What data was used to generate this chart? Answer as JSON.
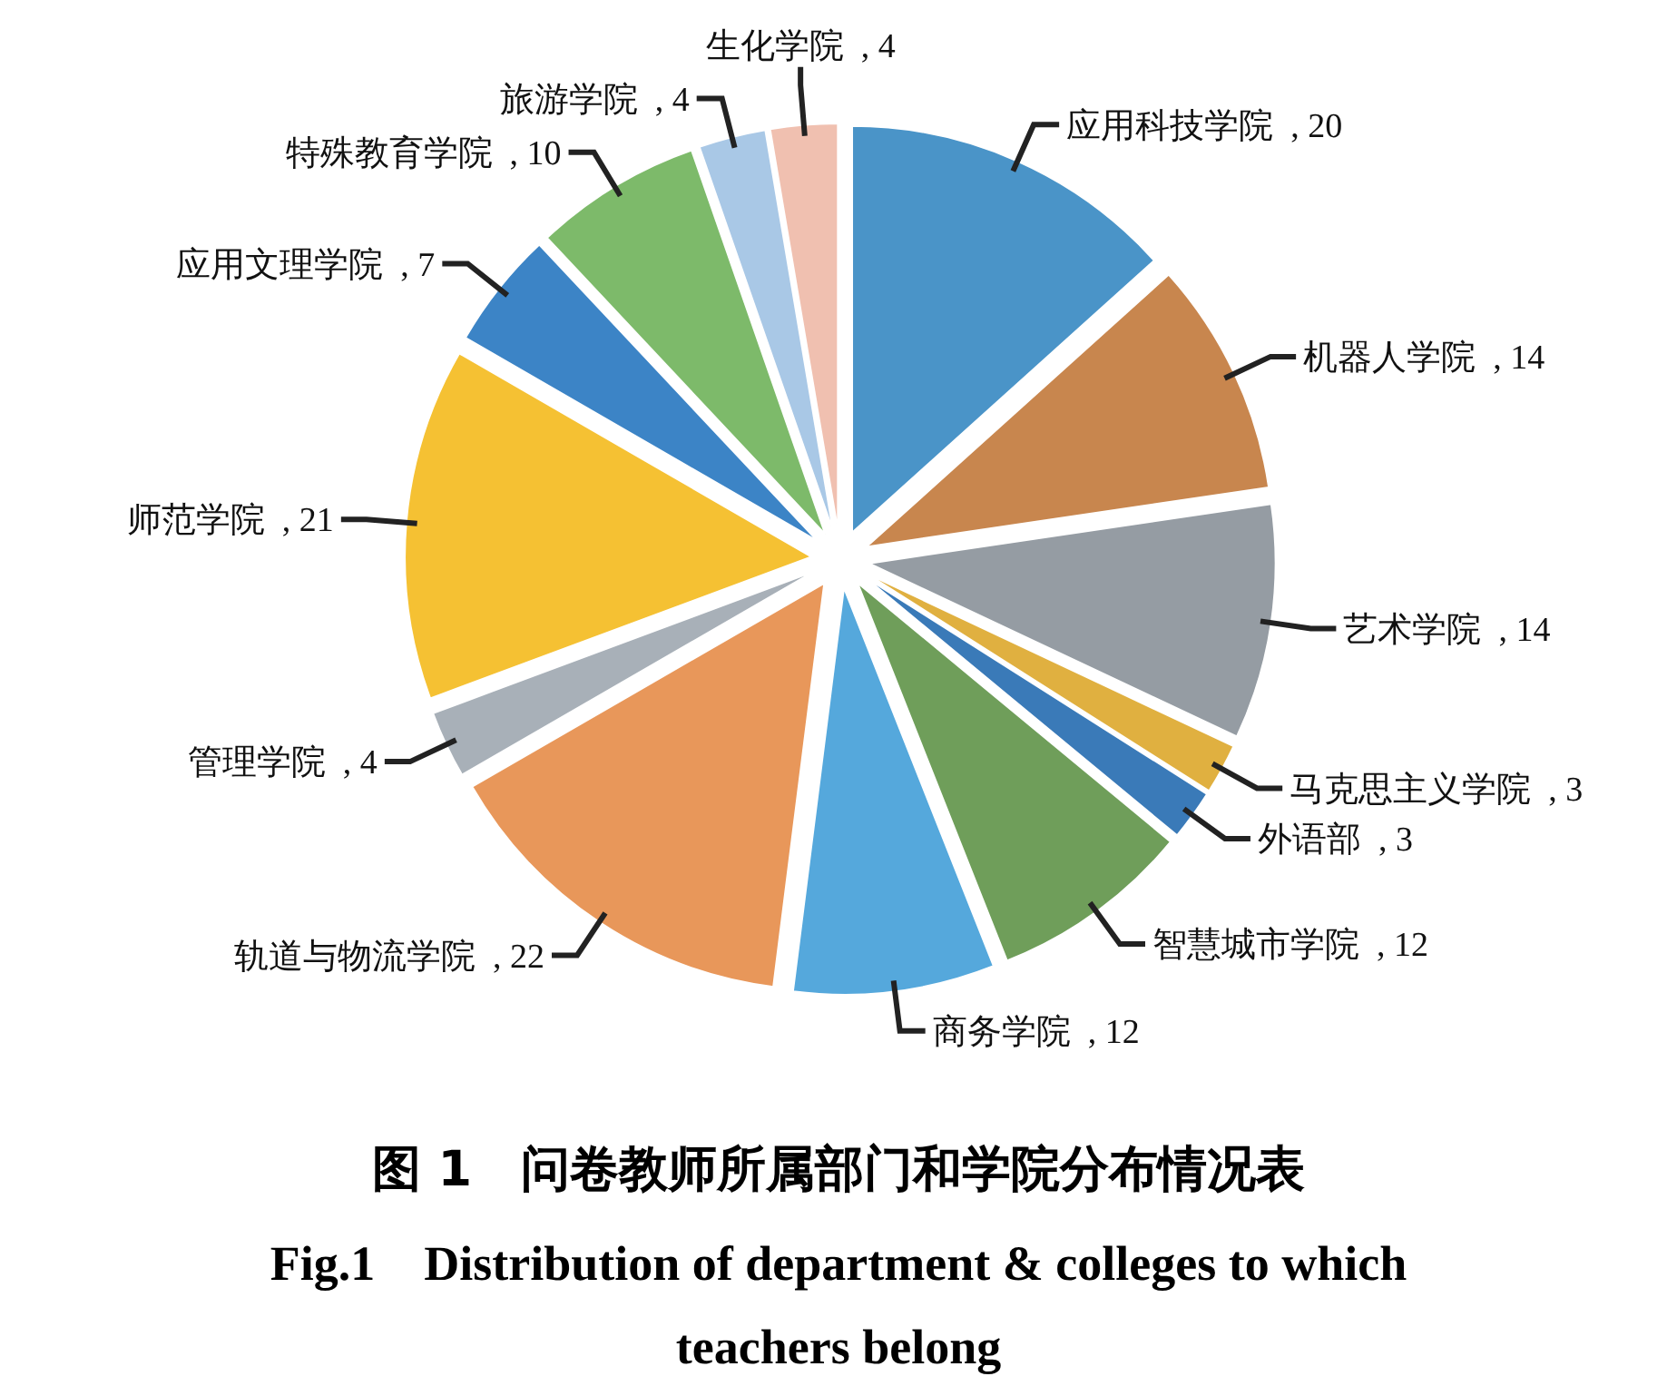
{
  "chart_data": {
    "type": "pie",
    "title": "图 1　问卷教师所属部门和学院分布情况表",
    "subtitle": "Fig.1　Distribution of department & colleges to which teachers belong",
    "categories": [
      "应用科技学院",
      "机器人学院",
      "艺术学院",
      "马克思主义学院",
      "外语部",
      "智慧城市学院",
      "商务学院",
      "轨道与物流学院",
      "管理学院",
      "师范学院",
      "应用文理学院",
      "特殊教育学院",
      "旅游学院",
      "生化学院"
    ],
    "values": [
      20,
      14,
      14,
      3,
      3,
      12,
      12,
      22,
      4,
      21,
      7,
      10,
      4,
      4
    ],
    "colors": [
      "#4a94c8",
      "#c8864e",
      "#959ca3",
      "#e0b040",
      "#3a7ab8",
      "#6f9e5a",
      "#55a8dc",
      "#e8975a",
      "#a8b0b8",
      "#f5c133",
      "#3c84c6",
      "#7dba6a",
      "#a9c8e6",
      "#f0c0b0"
    ],
    "value_labels": [
      ", 20",
      ", 14",
      ", 14",
      ", 3",
      ", 3",
      ", 12",
      ", 12",
      ", 22",
      ", 4",
      ", 21",
      ", 7",
      ", 10",
      ", 4",
      ", 4"
    ]
  }
}
